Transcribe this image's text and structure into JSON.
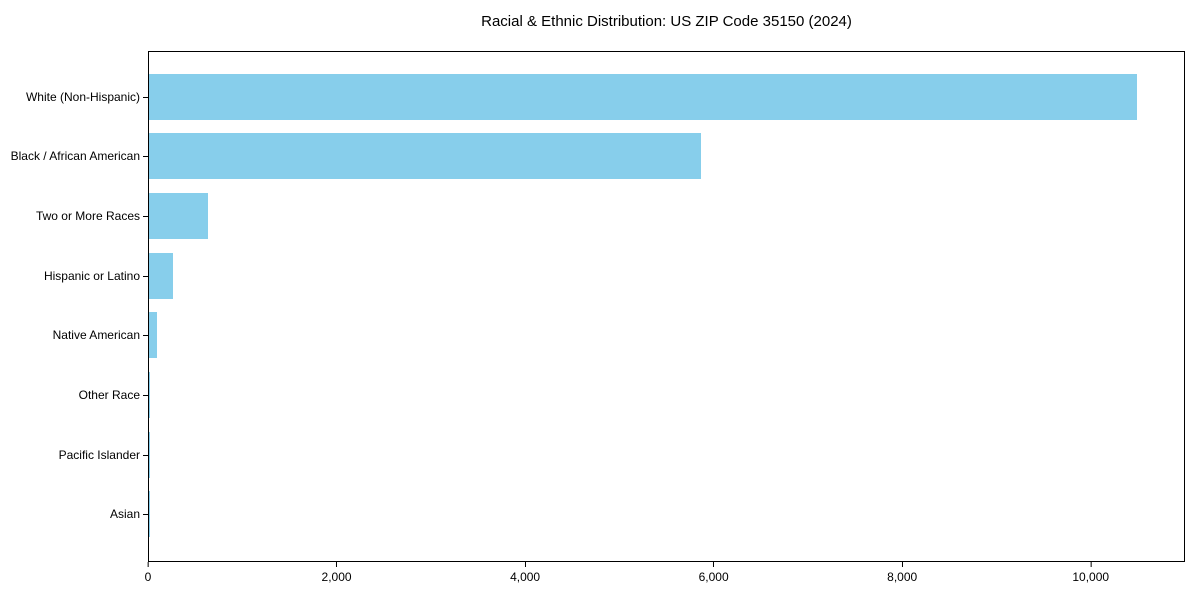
{
  "title": "Racial & Ethnic Distribution: US ZIP Code 35150 (2024)",
  "colors": {
    "bar": "#87CEEB",
    "axis": "#000000",
    "text": "#000000",
    "background": "#FFFFFF"
  },
  "chart_data": {
    "type": "bar",
    "orientation": "horizontal",
    "title": "Racial & Ethnic Distribution: US ZIP Code 35150 (2024)",
    "xlabel": "",
    "ylabel": "",
    "categories": [
      "White (Non-Hispanic)",
      "Black / African American",
      "Two or More Races",
      "Hispanic or Latino",
      "Native American",
      "Other Race",
      "Pacific Islander",
      "Asian"
    ],
    "values": [
      10500,
      5870,
      630,
      250,
      85,
      12,
      4,
      1
    ],
    "xlim": [
      0,
      11000
    ],
    "xticks": [
      0,
      2000,
      4000,
      6000,
      8000,
      10000
    ],
    "xtick_labels": [
      "0",
      "2,000",
      "4,000",
      "6,000",
      "8,000",
      "10,000"
    ],
    "grid": false,
    "legend": false
  }
}
